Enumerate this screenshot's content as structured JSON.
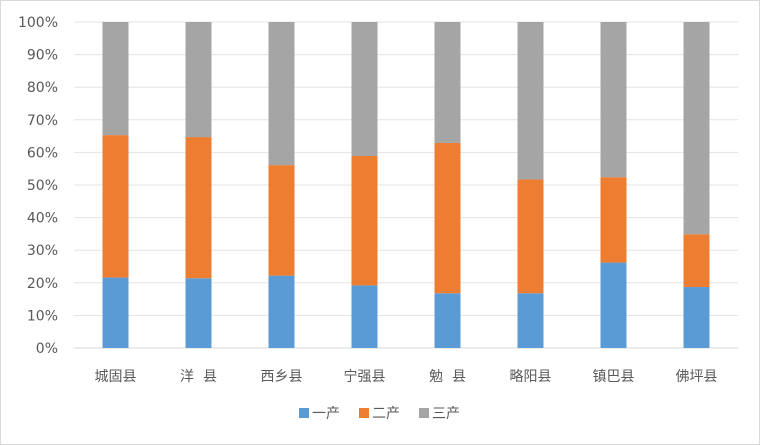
{
  "chart_data": {
    "type": "bar",
    "stacked": "percent",
    "categories": [
      "城固县",
      "洋  县",
      "西乡县",
      "宁强县",
      "勉  县",
      "略阳县",
      "镇巴县",
      "佛坪县"
    ],
    "series": [
      {
        "name": "一产",
        "color": "#5B9BD5",
        "values": [
          21.6,
          21.4,
          22.2,
          19.2,
          16.8,
          16.8,
          26.2,
          18.7
        ]
      },
      {
        "name": "二产",
        "color": "#ED7D31",
        "values": [
          43.7,
          43.3,
          33.9,
          39.7,
          46.1,
          34.9,
          26.2,
          16.2
        ]
      },
      {
        "name": "三产",
        "color": "#A5A5A5",
        "values": [
          34.7,
          35.3,
          43.9,
          41.1,
          37.1,
          48.3,
          47.6,
          65.1
        ]
      }
    ],
    "ylim": [
      0,
      100
    ],
    "yticks": [
      "0%",
      "10%",
      "20%",
      "30%",
      "40%",
      "50%",
      "60%",
      "70%",
      "80%",
      "90%",
      "100%"
    ],
    "grid": true,
    "legend": "bottom"
  }
}
